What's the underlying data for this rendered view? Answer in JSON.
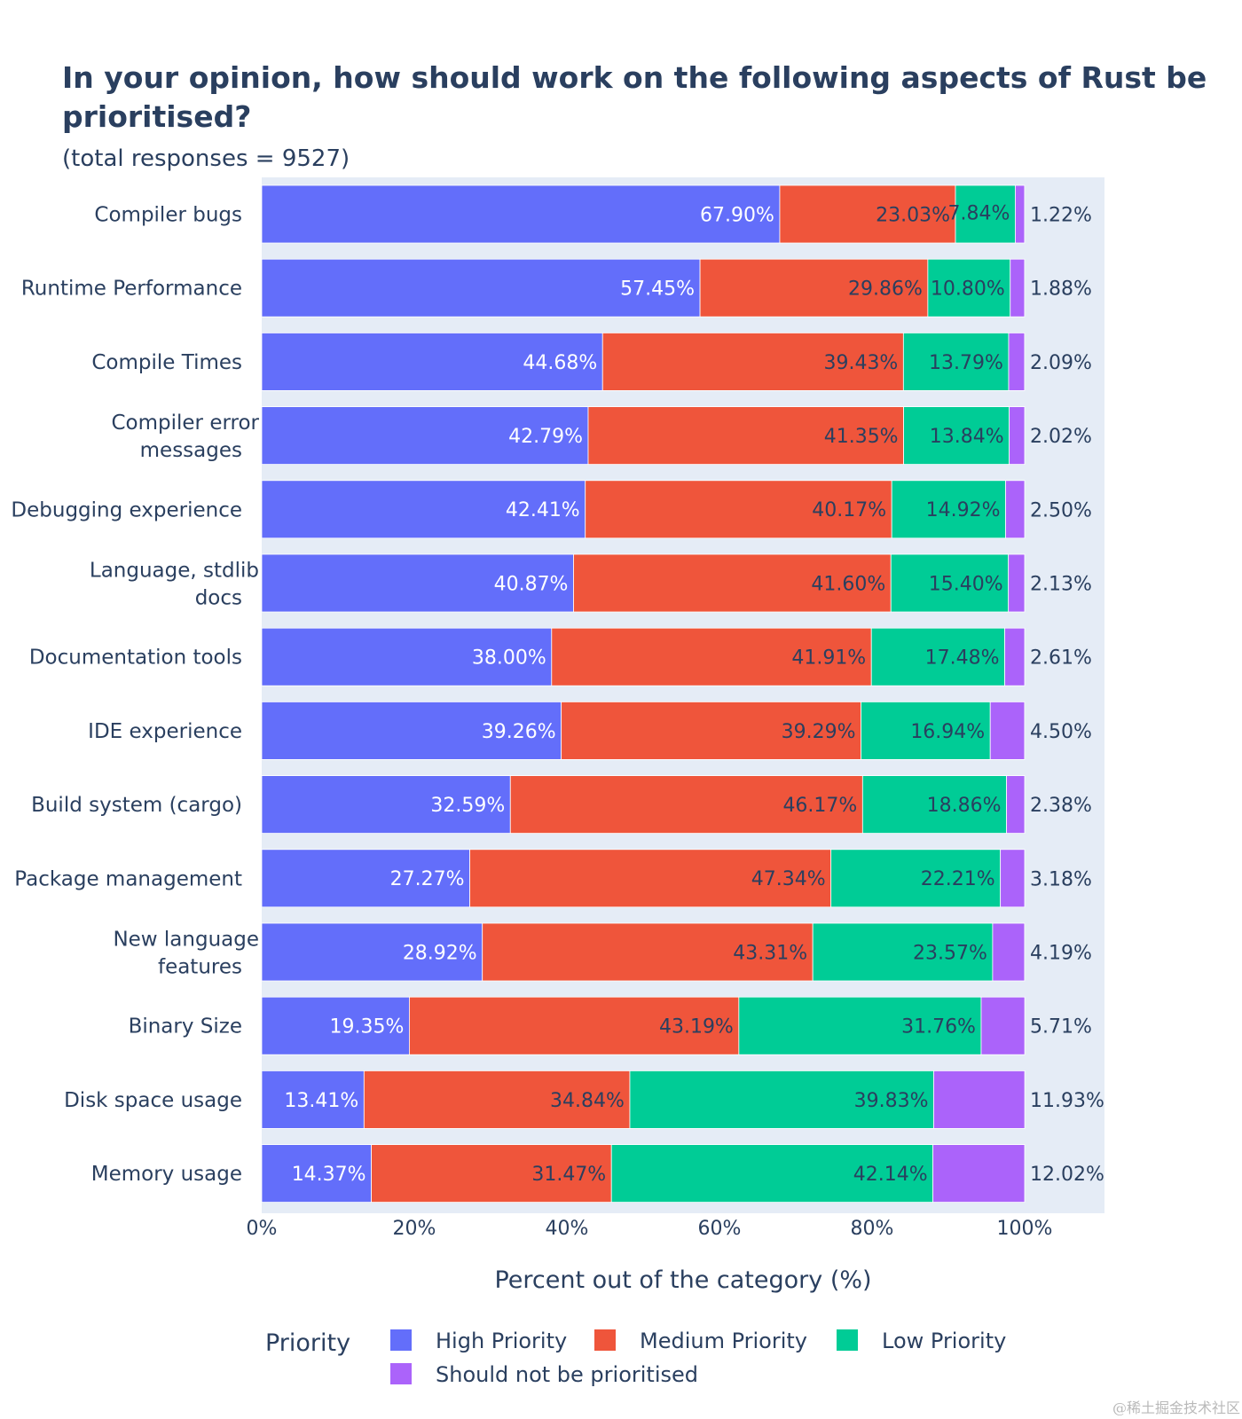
{
  "chart_data": {
    "type": "bar",
    "orientation": "horizontal",
    "stacked": true,
    "title": "In your opinion, how should work on the following aspects of Rust be prioritised?",
    "subtitle": "(total responses = 9527)",
    "xlabel": "Percent out of the category (%)",
    "ylabel": "",
    "xlim": [
      0,
      100
    ],
    "xticks": [
      "0%",
      "20%",
      "40%",
      "60%",
      "80%",
      "100%"
    ],
    "categories": [
      [
        "Compiler bugs"
      ],
      [
        "Runtime Performance"
      ],
      [
        "Compile Times"
      ],
      [
        "Compiler error",
        "messages"
      ],
      [
        "Debugging experience"
      ],
      [
        "Language, stdlib",
        "docs"
      ],
      [
        "Documentation tools"
      ],
      [
        "IDE experience"
      ],
      [
        "Build system (cargo)"
      ],
      [
        "Package management"
      ],
      [
        "New language",
        "features"
      ],
      [
        "Binary Size"
      ],
      [
        "Disk space usage"
      ],
      [
        "Memory usage"
      ]
    ],
    "series": [
      {
        "name": "High Priority",
        "color": "#636efa",
        "text_color": "#ffffff",
        "values": [
          67.9,
          57.45,
          44.68,
          42.79,
          42.41,
          40.87,
          38.0,
          39.26,
          32.59,
          27.27,
          28.92,
          19.35,
          13.41,
          14.37
        ]
      },
      {
        "name": "Medium Priority",
        "color": "#ef553b",
        "text_color": "#2a3f5f",
        "values": [
          23.03,
          29.86,
          39.43,
          41.35,
          40.17,
          41.6,
          41.91,
          39.29,
          46.17,
          47.34,
          43.31,
          43.19,
          34.84,
          31.47
        ]
      },
      {
        "name": "Low Priority",
        "color": "#00cc96",
        "text_color": "#2a3f5f",
        "values": [
          7.84,
          10.8,
          13.79,
          13.84,
          14.92,
          15.4,
          17.48,
          16.94,
          18.86,
          22.21,
          23.57,
          31.76,
          39.83,
          42.14
        ]
      },
      {
        "name": "Should not be prioritised",
        "color": "#ab63fa",
        "text_color": "#2a3f5f",
        "values": [
          1.22,
          1.88,
          2.09,
          2.02,
          2.5,
          2.13,
          2.61,
          4.5,
          2.38,
          3.18,
          4.19,
          5.71,
          11.93,
          12.02
        ]
      }
    ],
    "legend": {
      "title": "Priority",
      "position": "bottom"
    },
    "grid": false
  },
  "watermark": "@稀土掘金技术社区"
}
